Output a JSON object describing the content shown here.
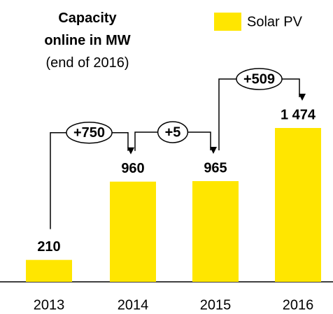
{
  "chart_data": {
    "type": "bar",
    "title": "Capacity online in MW",
    "subtitle": "(end of 2016)",
    "categories": [
      "2013",
      "2014",
      "2015",
      "2016"
    ],
    "series": [
      {
        "name": "Solar PV",
        "color": "#ffe600",
        "values": [
          210,
          960,
          965,
          1474
        ],
        "value_labels": [
          "210",
          "960",
          "965",
          "1 474"
        ]
      }
    ],
    "annotations": [
      "+750",
      "+5",
      "+509"
    ],
    "legend": "top-right"
  }
}
